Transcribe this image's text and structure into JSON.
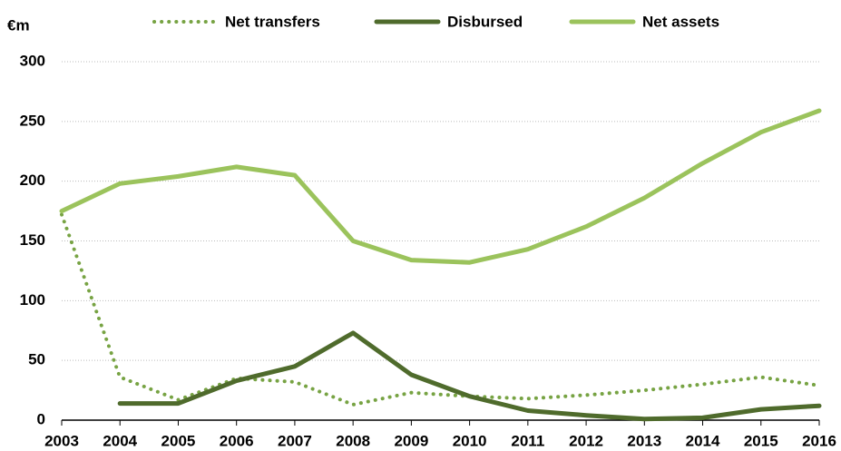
{
  "chart_data": {
    "type": "line",
    "y_axis_label": "€m",
    "categories": [
      "2003",
      "2004",
      "2005",
      "2006",
      "2007",
      "2008",
      "2009",
      "2010",
      "2011",
      "2012",
      "2013",
      "2014",
      "2015",
      "2016"
    ],
    "series": [
      {
        "name": "Net transfers",
        "color": "#77a343",
        "dash": "dotted",
        "values": [
          172,
          36,
          17,
          35,
          32,
          13,
          23,
          20,
          18,
          21,
          25,
          30,
          36,
          29
        ]
      },
      {
        "name": "Disbursed",
        "color": "#4f6b2c",
        "dash": "solid",
        "values": [
          null,
          14,
          14,
          33,
          45,
          73,
          38,
          20,
          8,
          4,
          1,
          2,
          9,
          12
        ]
      },
      {
        "name": "Net assets",
        "color": "#9bc35c",
        "dash": "solid",
        "values": [
          175,
          198,
          204,
          212,
          205,
          150,
          134,
          132,
          143,
          162,
          186,
          215,
          241,
          259
        ]
      }
    ],
    "ylim": [
      0,
      300
    ],
    "yticks": [
      0,
      50,
      100,
      150,
      200,
      250,
      300
    ],
    "grid": true,
    "legend": "top"
  }
}
